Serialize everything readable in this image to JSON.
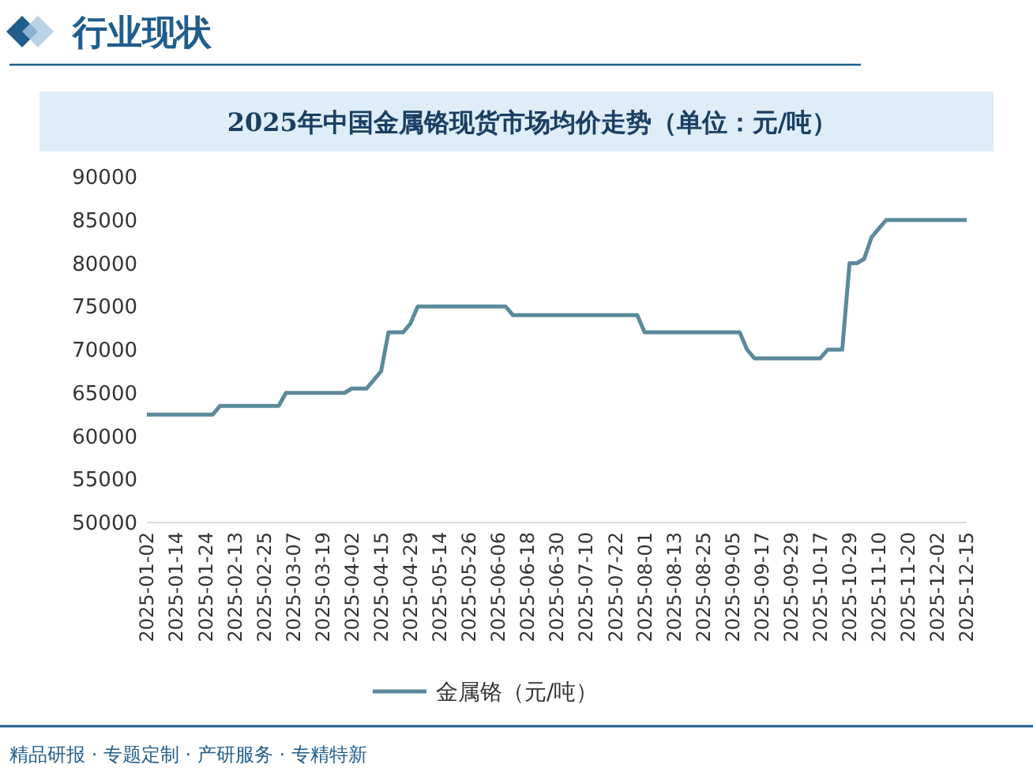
{
  "chart_data": {
    "type": "line",
    "title": "2025年中国金属铬现货市场均价走势（单位：元/吨）",
    "annotations": [
      "行业现状",
      "精品研报 · 专题定制 · 产研服务 · 专精特新"
    ],
    "categories": [
      "2025-01-02",
      null,
      null,
      null,
      "2025-01-14",
      null,
      null,
      null,
      "2025-01-24",
      null,
      null,
      null,
      "2025-02-13",
      null,
      null,
      null,
      "2025-02-25",
      null,
      null,
      null,
      "2025-03-07",
      null,
      null,
      null,
      "2025-03-19",
      null,
      null,
      null,
      "2025-04-02",
      null,
      null,
      null,
      "2025-04-15",
      null,
      null,
      null,
      "2025-04-29",
      null,
      null,
      null,
      "2025-05-14",
      null,
      null,
      null,
      "2025-05-26",
      null,
      null,
      null,
      "2025-06-06",
      null,
      null,
      null,
      "2025-06-18",
      null,
      null,
      null,
      "2025-06-30",
      null,
      null,
      null,
      "2025-07-10",
      null,
      null,
      null,
      "2025-07-22",
      null,
      null,
      null,
      "2025-08-01",
      null,
      null,
      null,
      "2025-08-13",
      null,
      null,
      null,
      "2025-08-25",
      null,
      null,
      null,
      "2025-09-05",
      null,
      null,
      null,
      "2025-09-17",
      null,
      null,
      null,
      "2025-09-29",
      null,
      null,
      null,
      "2025-10-17",
      null,
      null,
      null,
      "2025-10-29",
      null,
      null,
      null,
      "2025-11-10",
      null,
      null,
      null,
      "2025-11-20",
      null,
      null,
      null,
      "2025-12-02",
      null,
      null,
      null,
      "2025-12-15"
    ],
    "series": [
      {
        "name": "金属铬（元/吨）",
        "color": "#5b8a9c",
        "values": [
          62500,
          62500,
          62500,
          62500,
          62500,
          62500,
          62500,
          62500,
          62500,
          62500,
          63500,
          63500,
          63500,
          63500,
          63500,
          63500,
          63500,
          63500,
          63500,
          65000,
          65000,
          65000,
          65000,
          65000,
          65000,
          65000,
          65000,
          65000,
          65500,
          65500,
          65500,
          66500,
          67500,
          72000,
          72000,
          72000,
          73000,
          75000,
          75000,
          75000,
          75000,
          75000,
          75000,
          75000,
          75000,
          75000,
          75000,
          75000,
          75000,
          75000,
          74000,
          74000,
          74000,
          74000,
          74000,
          74000,
          74000,
          74000,
          74000,
          74000,
          74000,
          74000,
          74000,
          74000,
          74000,
          74000,
          74000,
          74000,
          72000,
          72000,
          72000,
          72000,
          72000,
          72000,
          72000,
          72000,
          72000,
          72000,
          72000,
          72000,
          72000,
          72000,
          70000,
          69000,
          69000,
          69000,
          69000,
          69000,
          69000,
          69000,
          69000,
          69000,
          69000,
          70000,
          70000,
          70000,
          80000,
          80000,
          80500,
          83000,
          84000,
          85000,
          85000,
          85000,
          85000,
          85000,
          85000,
          85000,
          85000,
          85000,
          85000,
          85000,
          85000
        ]
      }
    ],
    "ylim": [
      50000,
      90000
    ],
    "yticks": [
      50000,
      55000,
      60000,
      65000,
      70000,
      75000,
      80000,
      85000,
      90000
    ],
    "legend": "bottom",
    "marker": "none",
    "line_style": "solid",
    "grid": false
  }
}
